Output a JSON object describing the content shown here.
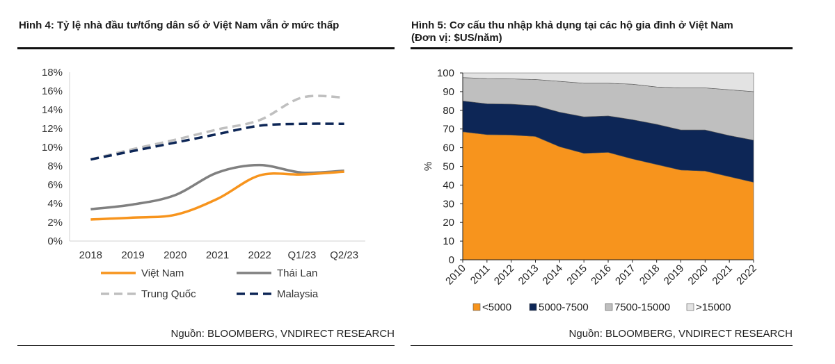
{
  "left": {
    "title": "Hình 4: Tỷ lệ nhà đầu tư/tổng dân số ở Việt Nam vẫn ở mức thấp",
    "source": "Nguồn: BLOOMBERG, VNDIRECT RESEARCH"
  },
  "right": {
    "title_line1": "Hình 5: Cơ cấu thu nhập khả dụng tại các hộ gia đình ở Việt Nam",
    "title_line2": "(Đơn vị: $US/năm)",
    "source": "Nguồn: BLOOMBERG, VNDIRECT RESEARCH"
  },
  "chart_data": [
    {
      "type": "line",
      "categories": [
        "2018",
        "2019",
        "2020",
        "2021",
        "2022",
        "Q1/23",
        "Q2/23"
      ],
      "yticks": [
        "0%",
        "2%",
        "4%",
        "6%",
        "8%",
        "10%",
        "12%",
        "14%",
        "16%",
        "18%"
      ],
      "ylim": [
        0,
        18
      ],
      "series": [
        {
          "name": "Việt Nam",
          "color": "#f7941d",
          "dash": "solid",
          "values": [
            2.3,
            2.5,
            2.8,
            4.5,
            7.0,
            7.1,
            7.4
          ]
        },
        {
          "name": "Thái Lan",
          "color": "#808080",
          "dash": "solid",
          "values": [
            3.4,
            3.9,
            4.9,
            7.3,
            8.1,
            7.3,
            7.5
          ]
        },
        {
          "name": "Trung Quốc",
          "color": "#bfbfbf",
          "dash": "dashed",
          "values": [
            8.7,
            9.8,
            10.8,
            11.9,
            12.9,
            15.3,
            15.3
          ]
        },
        {
          "name": "Malaysia",
          "color": "#0d2656",
          "dash": "dashed",
          "values": [
            8.7,
            9.6,
            10.5,
            11.4,
            12.3,
            12.5,
            12.5
          ]
        }
      ],
      "grid": false
    },
    {
      "type": "area",
      "categories": [
        "2010",
        "2011",
        "2012",
        "2013",
        "2014",
        "2015",
        "2016",
        "2017",
        "2018",
        "2019",
        "2020",
        "2021",
        "2022"
      ],
      "yticks": [
        "0",
        "10",
        "20",
        "30",
        "40",
        "50",
        "60",
        "70",
        "80",
        "90",
        "100"
      ],
      "ylabel": "%",
      "ylim": [
        0,
        100
      ],
      "stacked": true,
      "series": [
        {
          "name": "<5000",
          "color": "#f7941d",
          "values": [
            68.5,
            67,
            66.8,
            66,
            60.5,
            57,
            57.5,
            54,
            51,
            48,
            47.5,
            44.5,
            41.5
          ]
        },
        {
          "name": "5000-7500",
          "color": "#0d2656",
          "values": [
            16.5,
            16.5,
            16.5,
            16.5,
            18.5,
            19.5,
            19.5,
            21,
            21.5,
            21.5,
            22,
            22,
            22.5
          ]
        },
        {
          "name": "7500-15000",
          "color": "#bfbfbf",
          "values": [
            12.5,
            13.5,
            13.5,
            14,
            16.5,
            18,
            17.5,
            19,
            20,
            22.5,
            22.5,
            24.5,
            26
          ]
        },
        {
          "name": ">15000",
          "color": "#e3e3e3",
          "values": [
            2.5,
            3,
            3.2,
            3.5,
            4.5,
            5.5,
            5.5,
            6,
            7.5,
            8,
            8,
            9,
            10
          ]
        }
      ],
      "grid": false
    }
  ]
}
